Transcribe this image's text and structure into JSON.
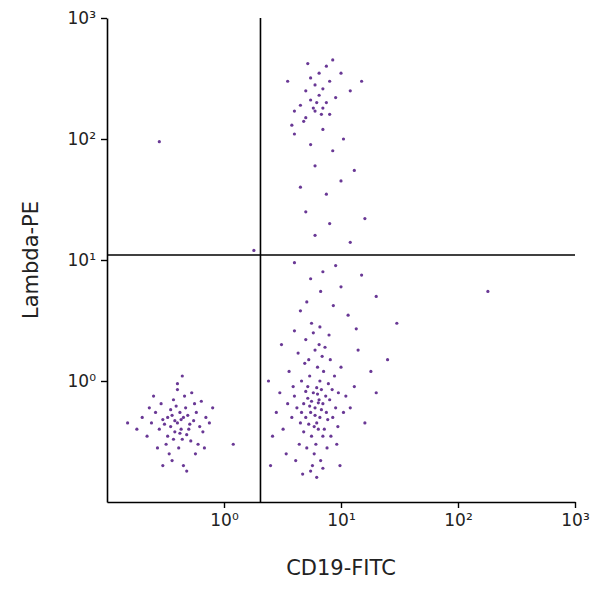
{
  "chart_data": {
    "type": "scatter",
    "x_label": "CD19-FITC",
    "y_label": "Lambda-PE",
    "log": true,
    "color": "#4f1583",
    "marker": "circle",
    "xlim": [
      0.1,
      1000
    ],
    "ylim": [
      0.1,
      1000
    ],
    "xticks": [
      {
        "value": 1,
        "label": "10⁰"
      },
      {
        "value": 10,
        "label": "10¹"
      },
      {
        "value": 100,
        "label": "10²"
      },
      {
        "value": 1000,
        "label": "10³"
      }
    ],
    "yticks": [
      {
        "value": 1,
        "label": "10⁰"
      },
      {
        "value": 10,
        "label": "10¹"
      },
      {
        "value": 100,
        "label": "10²"
      },
      {
        "value": 1000,
        "label": "10³"
      }
    ],
    "quadrant_x": 2.05,
    "quadrant_y": 11,
    "x": [
      0.4,
      0.35,
      0.45,
      0.38,
      0.42,
      0.3,
      0.5,
      0.33,
      0.47,
      0.36,
      0.44,
      0.28,
      0.55,
      0.39,
      0.32,
      0.48,
      0.26,
      0.58,
      0.41,
      0.37,
      0.52,
      0.24,
      0.62,
      0.34,
      0.46,
      0.29,
      0.56,
      0.43,
      0.31,
      0.49,
      0.22,
      0.66,
      0.36,
      0.53,
      0.27,
      0.6,
      0.4,
      0.2,
      0.7,
      0.45,
      0.38,
      0.42,
      0.35,
      0.51,
      0.33,
      0.18,
      0.75,
      0.4,
      0.3,
      0.64,
      0.25,
      0.57,
      0.15,
      0.8,
      0.44,
      0.48,
      0.23,
      0.68,
      0.37,
      0.43,
      6.0,
      5.5,
      6.5,
      5.0,
      7.0,
      6.2,
      5.8,
      4.8,
      7.5,
      6.4,
      5.2,
      6.8,
      4.5,
      8.0,
      5.6,
      6.6,
      4.2,
      7.2,
      5.4,
      6.1,
      8.5,
      4.0,
      7.8,
      5.9,
      6.3,
      3.8,
      9.0,
      5.1,
      7.1,
      4.6,
      6.7,
      3.5,
      9.5,
      5.3,
      8.2,
      4.4,
      6.9,
      5.7,
      3.2,
      10.5,
      4.9,
      7.6,
      6.0,
      4.1,
      8.8,
      5.5,
      3.0,
      11.0,
      6.5,
      4.7,
      7.3,
      3.6,
      9.2,
      5.0,
      6.2,
      8.1,
      2.8,
      12.0,
      5.8,
      7.0,
      4.3,
      10.0,
      6.6,
      3.4,
      13.0,
      5.6,
      2.6,
      7.9,
      4.0,
      9.8,
      6.0,
      5.4,
      6.8,
      5.2,
      7.4,
      6.4,
      5.9,
      4.8,
      7.7,
      6.2,
      5.6,
      6.6,
      5.0,
      7.0,
      4.6,
      8.4,
      5.3,
      6.3,
      3.9,
      9.4,
      14.0,
      16.0,
      2.4,
      3.1,
      18.0,
      11.5,
      8.6,
      5.1,
      13.5,
      2.5,
      25.0,
      20.0,
      6.7,
      10.0,
      4.5,
      7.0,
      5.5,
      9.0,
      15.0,
      4.0,
      12.0,
      6.0,
      8.0,
      5.0,
      16.0,
      7.5,
      4.5,
      10.0,
      6.0,
      13.0,
      8.5,
      5.5,
      4.0,
      7.0,
      10.5,
      5.0,
      6.0,
      7.0,
      4.5,
      8.0,
      5.5,
      6.5,
      7.5,
      5.0,
      6.0,
      7.0,
      8.0,
      4.0,
      9.0,
      6.5,
      5.5,
      7.5,
      3.5,
      10.0,
      4.8,
      6.2,
      5.8,
      6.8,
      12.0,
      3.8,
      15.0,
      8.5,
      5.2,
      0.28,
      180,
      1.8,
      1.2,
      30,
      20
    ],
    "values": [
      0.45,
      0.42,
      0.5,
      0.38,
      0.55,
      0.48,
      0.4,
      0.35,
      0.6,
      0.52,
      0.33,
      0.4,
      0.47,
      0.62,
      0.3,
      0.36,
      0.55,
      0.55,
      0.28,
      0.7,
      0.32,
      0.45,
      0.42,
      0.25,
      0.75,
      0.65,
      0.65,
      0.4,
      0.44,
      0.52,
      0.35,
      0.38,
      0.22,
      0.8,
      0.28,
      0.3,
      0.85,
      0.5,
      0.5,
      0.2,
      0.47,
      0.37,
      0.58,
      0.44,
      0.5,
      0.4,
      0.45,
      0.95,
      0.2,
      0.68,
      0.75,
      0.25,
      0.45,
      0.6,
      1.1,
      0.18,
      0.6,
      0.28,
      0.33,
      0.48,
      0.6,
      0.55,
      0.7,
      0.5,
      0.65,
      0.45,
      0.8,
      0.65,
      0.55,
      0.4,
      0.9,
      0.85,
      0.45,
      0.7,
      0.35,
      1.0,
      0.6,
      0.4,
      1.1,
      0.3,
      0.5,
      0.75,
      0.95,
      0.25,
      1.3,
      0.5,
      0.6,
      0.28,
      1.2,
      1.0,
      0.22,
      0.65,
      0.8,
      1.5,
      0.35,
      0.3,
      1.6,
      0.2,
      0.4,
      0.55,
      1.4,
      0.28,
      1.8,
      0.22,
      1.1,
      0.18,
      0.8,
      0.75,
      2.0,
      0.17,
      1.9,
      1.2,
      0.3,
      2.2,
      0.16,
      1.5,
      0.55,
      0.6,
      2.5,
      0.19,
      1.7,
      1.3,
      2.8,
      0.25,
      0.9,
      3.0,
      0.35,
      2.4,
      2.6,
      0.2,
      0.52,
      0.62,
      0.58,
      0.72,
      0.75,
      0.66,
      0.42,
      0.38,
      0.48,
      0.88,
      0.68,
      0.5,
      0.82,
      0.35,
      0.55,
      0.85,
      0.44,
      0.78,
      0.9,
      0.42,
      1.8,
      0.45,
      1.0,
      2.0,
      1.2,
      3.5,
      4.2,
      4.5,
      2.7,
      0.2,
      1.5,
      0.8,
      5.5,
      6.0,
      3.8,
      8.0,
      7.0,
      9.0,
      7.5,
      9.5,
      14.0,
      16.0,
      20.0,
      25.0,
      22.0,
      35.0,
      40.0,
      45.0,
      60.0,
      55.0,
      80.0,
      90.0,
      110.0,
      120.0,
      100.0,
      150.0,
      170.0,
      180.0,
      190.0,
      160.0,
      210.0,
      230.0,
      200.0,
      250.0,
      280.0,
      260.0,
      300.0,
      170.0,
      220.0,
      350.0,
      320.0,
      400.0,
      300.0,
      350.0,
      140.0,
      200.0,
      180.0,
      160.0,
      250.0,
      130.0,
      300.0,
      450.0,
      420.0,
      95,
      5.5,
      12,
      0.3,
      3,
      5
    ]
  }
}
